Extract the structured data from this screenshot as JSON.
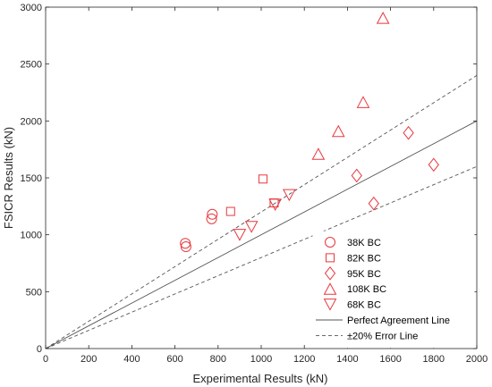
{
  "chart_data": {
    "type": "scatter",
    "xlabel": "Experimental Results (kN)",
    "ylabel": "FSICR Results (kN)",
    "xlim": [
      0,
      2000
    ],
    "ylim": [
      0,
      3000
    ],
    "x_ticks": [
      0,
      200,
      400,
      600,
      800,
      1000,
      1200,
      1400,
      1600,
      1800,
      2000
    ],
    "y_ticks": [
      0,
      500,
      1000,
      1500,
      2000,
      2500,
      3000
    ],
    "x_tick_labels": [
      "0",
      "200",
      "400",
      "600",
      "800",
      "1000",
      "1200",
      "1400",
      "1600",
      "1800",
      "2000"
    ],
    "y_tick_labels": [
      "0",
      "500",
      "1000",
      "1500",
      "2000",
      "2500",
      "3000"
    ],
    "grid": false,
    "legend_position": "bottom-right",
    "marker_color": "#e8383d",
    "series": [
      {
        "name": "38K BC",
        "marker": "circle",
        "points": [
          [
            648,
            925
          ],
          [
            651,
            895
          ],
          [
            770,
            1140
          ],
          [
            773,
            1180
          ]
        ]
      },
      {
        "name": "82K BC",
        "marker": "square",
        "points": [
          [
            858,
            1205
          ],
          [
            1008,
            1490
          ],
          [
            1060,
            1280
          ]
        ]
      },
      {
        "name": "95K BC",
        "marker": "diamond",
        "points": [
          [
            1443,
            1520
          ],
          [
            1522,
            1275
          ],
          [
            1683,
            1895
          ],
          [
            1800,
            1615
          ]
        ]
      },
      {
        "name": "108K BC",
        "marker": "triangle-up",
        "points": [
          [
            1265,
            1710
          ],
          [
            1358,
            1910
          ],
          [
            1473,
            2165
          ],
          [
            1565,
            2905
          ]
        ]
      },
      {
        "name": "68K BC",
        "marker": "triangle-down",
        "points": [
          [
            900,
            1000
          ],
          [
            955,
            1070
          ],
          [
            1065,
            1265
          ],
          [
            1130,
            1350
          ]
        ]
      }
    ],
    "lines": [
      {
        "name": "Perfect Agreement Line",
        "style": "solid",
        "color": "#555555",
        "points": [
          [
            0,
            0
          ],
          [
            2000,
            2000
          ]
        ]
      },
      {
        "name": "±20% Error Line",
        "style": "dashed",
        "color": "#555555",
        "points": [
          [
            0,
            0
          ],
          [
            2000,
            2400
          ]
        ]
      },
      {
        "name": "",
        "style": "dashed",
        "color": "#555555",
        "points": [
          [
            0,
            0
          ],
          [
            2000,
            1600
          ]
        ]
      }
    ]
  }
}
